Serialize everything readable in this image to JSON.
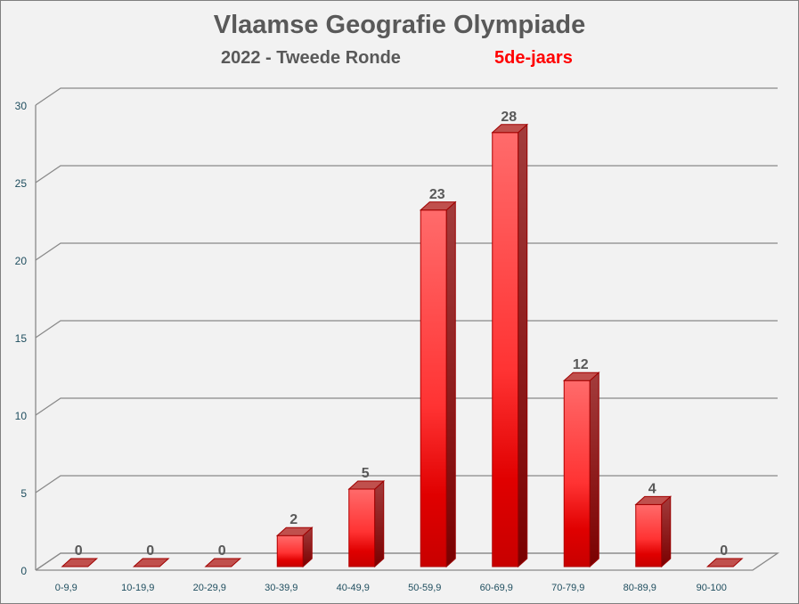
{
  "header": {
    "title": "Vlaamse Geografie Olympiade",
    "subtitle": "2022 - Tweede Ronde",
    "group": "5de-jaars"
  },
  "colors": {
    "bar_front": "#e00000",
    "bar_top": "#c0504d",
    "bar_side": "#8b0000",
    "grid": "#898989",
    "axis_label": "#1f4e5f",
    "data_label": "#595959",
    "group_text": "#ff0000"
  },
  "chart_data": {
    "type": "bar",
    "style": "3d-column",
    "title": "Vlaamse Geografie Olympiade",
    "subtitle": "2022 - Tweede Ronde — 5de-jaars",
    "categories": [
      "0-9,9",
      "10-19,9",
      "20-29,9",
      "30-39,9",
      "40-49,9",
      "50-59,9",
      "60-69,9",
      "70-79,9",
      "80-89,9",
      "90-100"
    ],
    "values": [
      0,
      0,
      0,
      2,
      5,
      23,
      28,
      12,
      4,
      0
    ],
    "xlabel": "",
    "ylabel": "",
    "ylim": [
      0,
      30
    ],
    "yticks": [
      0,
      5,
      10,
      15,
      20,
      25,
      30
    ],
    "grid": true,
    "legend": null,
    "data_labels": true
  }
}
